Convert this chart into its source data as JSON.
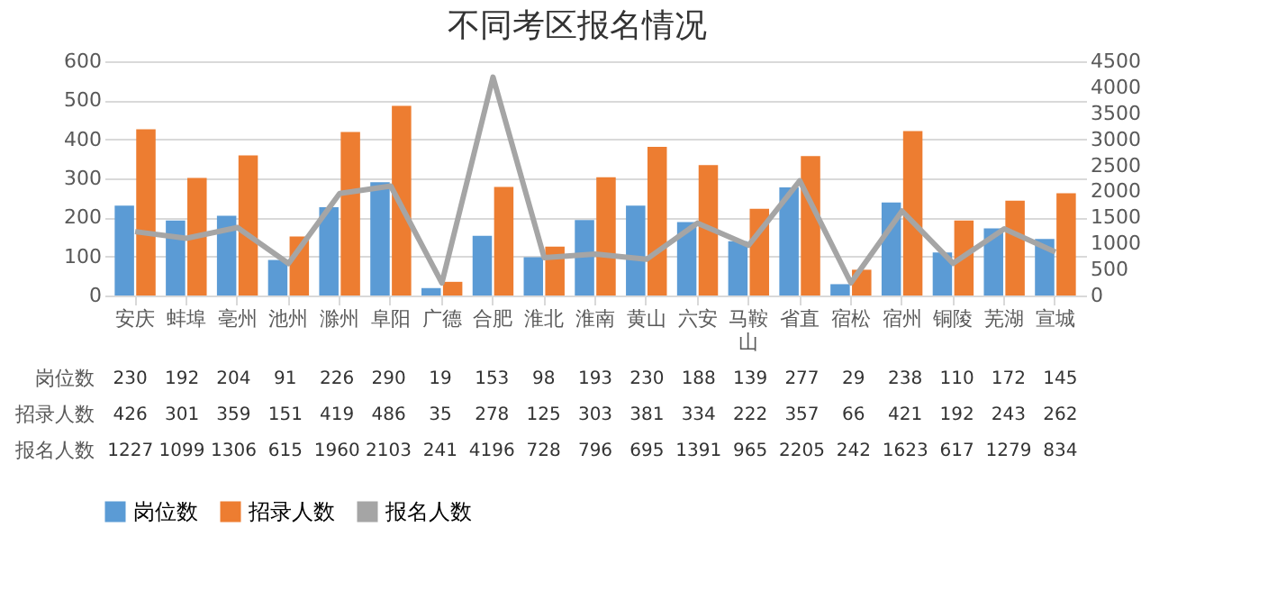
{
  "chart_data": {
    "type": "bar",
    "title": "不同考区报名情况",
    "categories": [
      "安庆",
      "蚌埠",
      "亳州",
      "池州",
      "滁州",
      "阜阳",
      "广德",
      "合肥",
      "淮北",
      "淮南",
      "黄山",
      "六安",
      "马鞍山",
      "省直",
      "宿松",
      "宿州",
      "铜陵",
      "芜湖",
      "宣城"
    ],
    "series": [
      {
        "name": "岗位数",
        "color": "#5b9bd5",
        "values": [
          230,
          192,
          204,
          91,
          226,
          290,
          19,
          153,
          98,
          193,
          230,
          188,
          139,
          277,
          29,
          238,
          110,
          172,
          145
        ]
      },
      {
        "name": "招录人数",
        "color": "#ed7d31",
        "values": [
          426,
          301,
          359,
          151,
          419,
          486,
          35,
          278,
          125,
          303,
          381,
          334,
          222,
          357,
          66,
          421,
          192,
          243,
          262
        ]
      },
      {
        "name": "报名人数",
        "type": "line",
        "axis": "y2",
        "color": "#a5a5a5",
        "values": [
          1227,
          1099,
          1306,
          615,
          1960,
          2103,
          241,
          4196,
          728,
          796,
          695,
          1391,
          965,
          2205,
          242,
          1623,
          617,
          1279,
          834
        ]
      }
    ],
    "ylim": [
      0,
      600
    ],
    "yticks": [
      0,
      100,
      200,
      300,
      400,
      500,
      600
    ],
    "y2lim": [
      0,
      4500
    ],
    "y2ticks": [
      0,
      500,
      1000,
      1500,
      2000,
      2500,
      3000,
      3500,
      4000,
      4500
    ],
    "grid": "y",
    "legend": "bottom",
    "data_labels": true,
    "marker": "none",
    "line_style": "solid"
  }
}
